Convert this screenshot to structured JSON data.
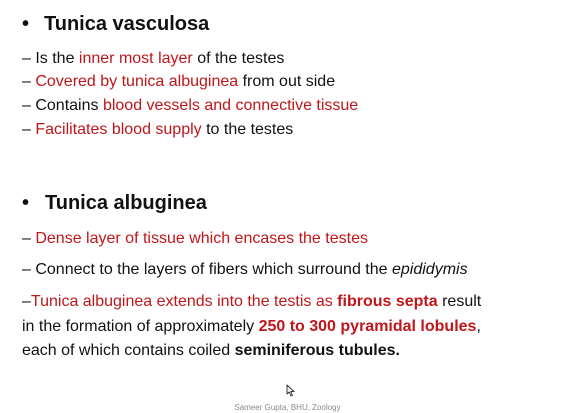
{
  "slide": {
    "section1": {
      "bullet": "•",
      "title": "Tunica vasculosa",
      "lines": [
        {
          "prefix": "– Is the ",
          "highlight": "inner most layer",
          "suffix": " of the testes"
        },
        {
          "dash": "– ",
          "highlight": "Covered by tunica albuginea",
          "suffix": " from out side"
        },
        {
          "prefix": "– Contains ",
          "highlight": "blood vessels and connective tissue"
        },
        {
          "dash": "– ",
          "highlight": "Facilitates blood supply",
          "suffix": " to the testes"
        }
      ]
    },
    "section2": {
      "bullet": "•",
      "title": "Tunica albuginea",
      "line1": {
        "dash": "– ",
        "highlight": "Dense layer of tissue which encases the testes"
      },
      "line2": {
        "prefix": "– Connect to the layers of fibers which surround the ",
        "italic": "epididymis"
      },
      "para": {
        "l1_dash": "–",
        "l1_red": "Tunica albuginea extends into the testis as ",
        "l1_bold_red": "fibrous septa",
        "l1_suffix": " result",
        "l2_prefix": "in the formation of approximately ",
        "l2_bold_red": "250 to 300 pyramidal lobules",
        "l2_suffix": ",",
        "l3_prefix": "each of which contains coiled ",
        "l3_bold": "seminiferous tubules."
      }
    },
    "footer": "Sameer Gupta, BHU, Zoology"
  },
  "colors": {
    "text": "#111111",
    "highlight": "#c0161b",
    "footer": "#8a8a8a"
  },
  "icons": {
    "cursor": "mouse-pointer-icon"
  }
}
